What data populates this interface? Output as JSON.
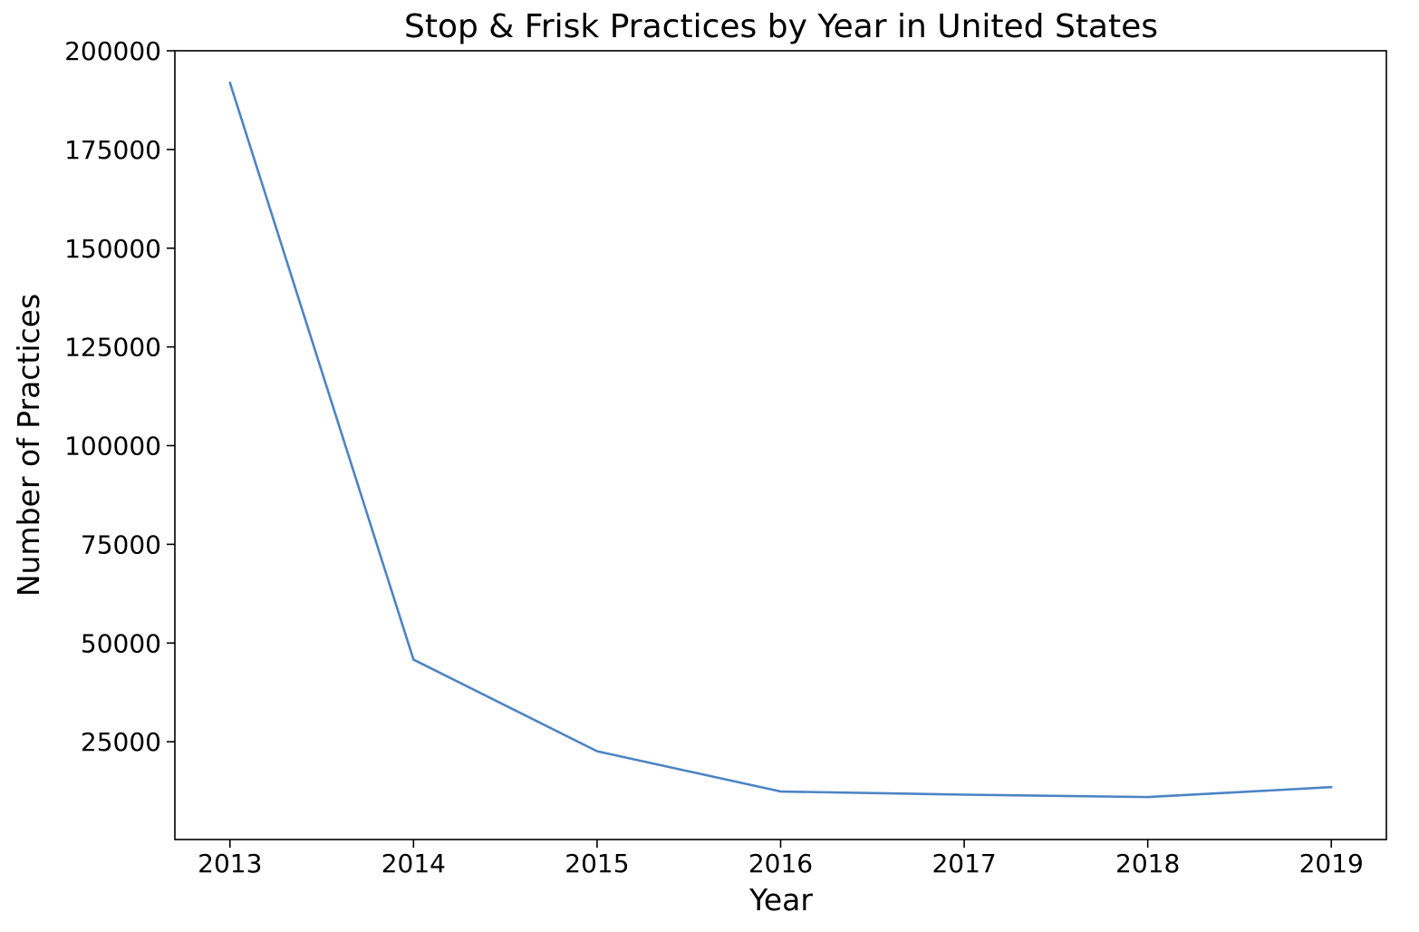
{
  "chart_data": {
    "type": "line",
    "title": "Stop & Frisk Practices by Year in United States",
    "xlabel": "Year",
    "ylabel": "Number of Practices",
    "x": [
      2013,
      2014,
      2015,
      2016,
      2017,
      2018,
      2019
    ],
    "x_tick_labels": [
      "2013",
      "2014",
      "2015",
      "2016",
      "2017",
      "2018",
      "2019"
    ],
    "series": [
      {
        "values": [
          191900,
          45800,
          22600,
          12400,
          11600,
          11000,
          13500
        ],
        "color": "#4c84c4"
      }
    ],
    "y_ticks": [
      25000,
      50000,
      75000,
      100000,
      125000,
      150000,
      175000,
      200000
    ],
    "y_tick_labels": [
      "25000",
      "50000",
      "75000",
      "100000",
      "125000",
      "150000",
      "175000",
      "200000"
    ],
    "xlim": [
      2012.7,
      2019.3
    ],
    "ylim": [
      236,
      200000
    ],
    "grid": false,
    "legend": "none",
    "axis_color": "#000000",
    "background_color": "#ffffff"
  }
}
